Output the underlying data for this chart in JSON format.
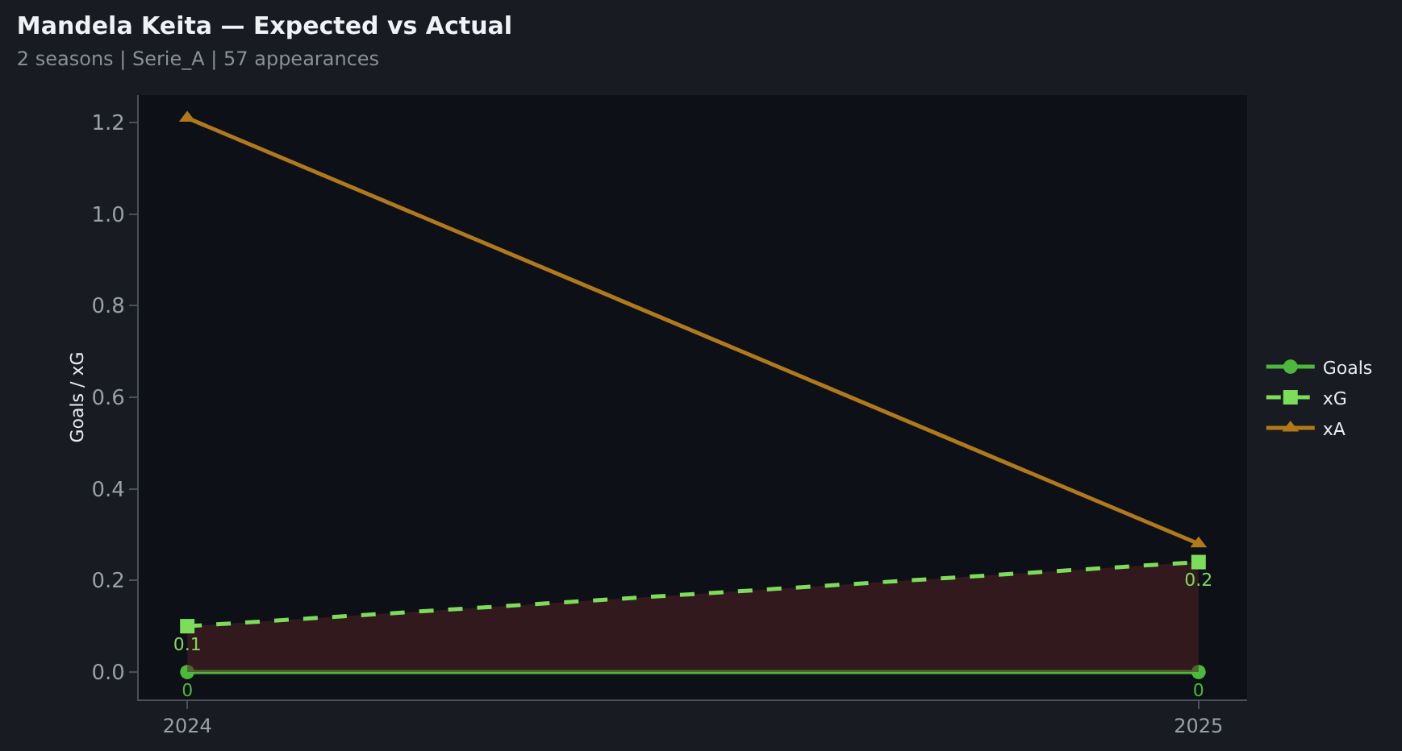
{
  "chart_data": {
    "type": "line",
    "title": "Mandela Keita — Expected vs Actual",
    "subtitle": "2 seasons | Serie_A | 57 appearances",
    "ylabel": "Goals / xG",
    "x": [
      2024,
      2025
    ],
    "xlim": [
      2023.952,
      2025.048
    ],
    "xticks": [
      2024,
      2025
    ],
    "ylim": [
      -0.06,
      1.26
    ],
    "yticks": [
      {
        "value": 0,
        "label": "0.0"
      },
      {
        "value": 0.2,
        "label": "0.2"
      },
      {
        "value": 0.4,
        "label": "0.4"
      },
      {
        "value": 0.6,
        "label": "0.6"
      },
      {
        "value": 0.8,
        "label": "0.8"
      },
      {
        "value": 1,
        "label": "1.0"
      },
      {
        "value": 1.2,
        "label": "1.2"
      }
    ],
    "grid": false,
    "legend": "right",
    "series": [
      {
        "name": "Goals",
        "color": "#4cb83c",
        "values": [
          0,
          0
        ],
        "marker": "circle",
        "line_style": "solid",
        "value_labels": [
          "0",
          "0"
        ]
      },
      {
        "name": "xG",
        "color": "#7ddc5a",
        "values": [
          0.1,
          0.24
        ],
        "marker": "square",
        "line_style": "dashed",
        "value_labels": [
          "0.1",
          "0.2"
        ],
        "lower": [
          0,
          0
        ],
        "upper": [
          0.1,
          0.24
        ]
      },
      {
        "name": "xA",
        "color": "#b07a1a",
        "values": [
          1.21,
          0.28
        ],
        "marker": "triangle",
        "line_style": "solid"
      }
    ]
  }
}
